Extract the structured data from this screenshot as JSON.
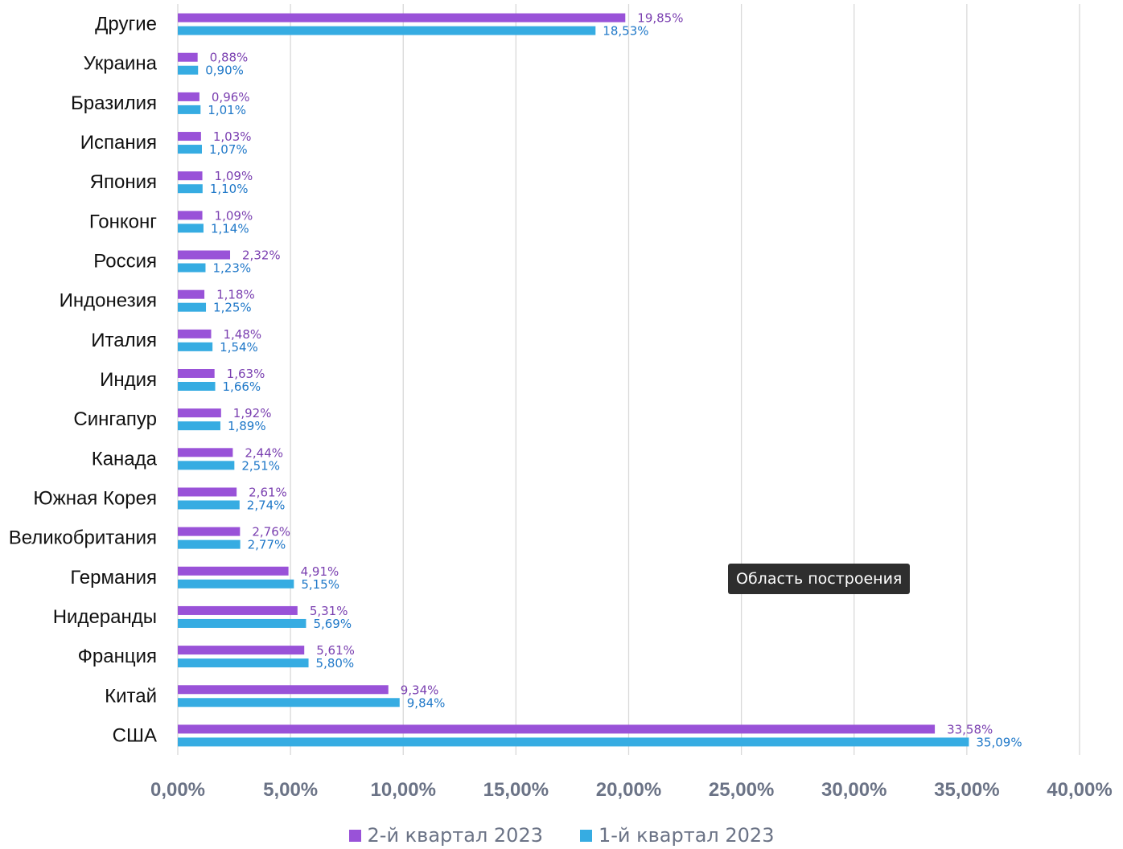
{
  "chart_data": {
    "type": "bar",
    "orientation": "horizontal",
    "categories": [
      "Другие",
      "Украина",
      "Бразилия",
      "Испания",
      "Япония",
      "Гонконг",
      "Россия",
      "Индонезия",
      "Италия",
      "Индия",
      "Сингапур",
      "Канада",
      "Южная Корея",
      "Великобритания",
      "Германия",
      "Нидеранды",
      "Франция",
      "Китай",
      "США"
    ],
    "series": [
      {
        "name": "2-й квартал 2023",
        "color": "#9952d8",
        "values": [
          19.85,
          0.88,
          0.96,
          1.03,
          1.09,
          1.09,
          2.32,
          1.18,
          1.48,
          1.63,
          1.92,
          2.44,
          2.61,
          2.76,
          4.91,
          5.31,
          5.61,
          9.34,
          33.58
        ],
        "labels": [
          "19,85%",
          "0,88%",
          "0,96%",
          "1,03%",
          "1,09%",
          "1,09%",
          "2,32%",
          "1,18%",
          "1,48%",
          "1,63%",
          "1,92%",
          "2,44%",
          "2,61%",
          "2,76%",
          "4,91%",
          "5,31%",
          "5,61%",
          "9,34%",
          "33,58%"
        ]
      },
      {
        "name": "1-й квартал 2023",
        "color": "#36ace2",
        "values": [
          18.53,
          0.9,
          1.01,
          1.07,
          1.1,
          1.14,
          1.23,
          1.25,
          1.54,
          1.66,
          1.89,
          2.51,
          2.74,
          2.77,
          5.15,
          5.69,
          5.8,
          9.84,
          35.09
        ],
        "labels": [
          "18,53%",
          "0,90%",
          "1,01%",
          "1,07%",
          "1,10%",
          "1,14%",
          "1,23%",
          "1,25%",
          "1,54%",
          "1,66%",
          "1,89%",
          "2,51%",
          "2,74%",
          "2,77%",
          "5,15%",
          "5,69%",
          "5,80%",
          "9,84%",
          "35,09%"
        ]
      }
    ],
    "xlim": [
      0,
      40
    ],
    "xticks": [
      0,
      5,
      10,
      15,
      20,
      25,
      30,
      35,
      40
    ],
    "xtick_labels": [
      "0,00%",
      "5,00%",
      "10,00%",
      "15,00%",
      "20,00%",
      "25,00%",
      "30,00%",
      "35,00%",
      "40,00%"
    ],
    "grid": true,
    "legend_position": "bottom"
  },
  "tooltip": {
    "text": "Область построения"
  }
}
